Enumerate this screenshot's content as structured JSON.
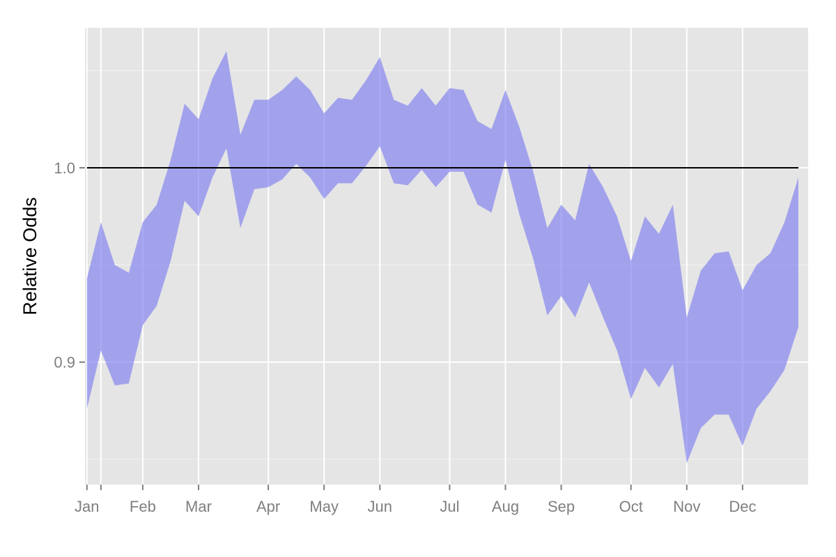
{
  "chart_data": {
    "type": "area",
    "title": "",
    "xlabel": "",
    "ylabel": "Relative Odds",
    "ylim": [
      0.837,
      1.072
    ],
    "xlim": [
      0.86,
      52.7
    ],
    "reference_line": 1.0,
    "x_ticks": [
      {
        "label": "Jan",
        "x": 1.0
      },
      {
        "label": "Feb",
        "x": 5.0
      },
      {
        "label": "Mar",
        "x": 9.0
      },
      {
        "label": "Apr",
        "x": 14.0
      },
      {
        "label": "May",
        "x": 18.0
      },
      {
        "label": "Jun",
        "x": 22.0
      },
      {
        "label": "Jul",
        "x": 27.0
      },
      {
        "label": "Aug",
        "x": 31.0
      },
      {
        "label": "Sep",
        "x": 35.0
      },
      {
        "label": "Oct",
        "x": 40.0
      },
      {
        "label": "Nov",
        "x": 44.0
      },
      {
        "label": "Dec",
        "x": 48.0
      }
    ],
    "extra_gridlines_x": [
      2.0
    ],
    "y_ticks": [
      {
        "label": "0.9",
        "y": 0.9
      },
      {
        "label": "1.0",
        "y": 1.0
      }
    ],
    "y_minor_gridlines": [
      0.85,
      0.95,
      1.05
    ],
    "series": [
      {
        "name": "ribbon",
        "x": [
          1,
          2,
          3,
          4,
          5,
          6,
          7,
          8,
          9,
          10,
          11,
          12,
          13,
          14,
          15,
          16,
          17,
          18,
          19,
          20,
          21,
          22,
          23,
          24,
          25,
          26,
          27,
          28,
          29,
          30,
          31,
          32,
          33,
          34,
          35,
          36,
          37,
          38,
          39,
          40,
          41,
          42,
          43,
          44,
          45,
          46,
          47,
          48,
          49,
          50,
          51,
          52
        ],
        "upper": [
          0.943,
          0.972,
          0.95,
          0.946,
          0.972,
          0.981,
          1.004,
          1.033,
          1.025,
          1.046,
          1.06,
          1.017,
          1.035,
          1.035,
          1.04,
          1.047,
          1.04,
          1.028,
          1.036,
          1.035,
          1.045,
          1.057,
          1.035,
          1.032,
          1.041,
          1.032,
          1.041,
          1.04,
          1.024,
          1.02,
          1.04,
          1.021,
          0.998,
          0.969,
          0.981,
          0.973,
          1.002,
          0.99,
          0.975,
          0.952,
          0.975,
          0.966,
          0.981,
          0.923,
          0.947,
          0.956,
          0.957,
          0.937,
          0.95,
          0.956,
          0.972,
          0.995
        ],
        "lower": [
          0.876,
          0.906,
          0.888,
          0.889,
          0.919,
          0.929,
          0.952,
          0.983,
          0.975,
          0.995,
          1.01,
          0.969,
          0.989,
          0.99,
          0.994,
          1.002,
          0.995,
          0.984,
          0.992,
          0.992,
          1.001,
          1.011,
          0.992,
          0.991,
          0.999,
          0.99,
          0.998,
          0.998,
          0.981,
          0.977,
          1.004,
          0.976,
          0.953,
          0.924,
          0.934,
          0.923,
          0.941,
          0.923,
          0.906,
          0.881,
          0.897,
          0.887,
          0.899,
          0.848,
          0.866,
          0.873,
          0.873,
          0.857,
          0.876,
          0.885,
          0.896,
          0.918
        ]
      }
    ],
    "colors": {
      "panel": "#e5e5e5",
      "grid_major": "#ffffff",
      "grid_minor": "#f2f2f2",
      "ribbon": "#8080f0",
      "reference_line": "#000000",
      "tick_label": "#7f7f7f"
    }
  }
}
